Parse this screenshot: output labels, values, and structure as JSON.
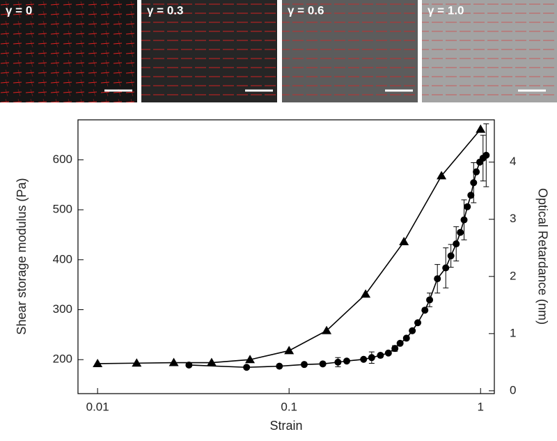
{
  "chart_data": {
    "type": "line",
    "panel_labels": [
      "γ = 0",
      "γ = 0.3",
      "γ = 0.6",
      "γ = 1.0"
    ],
    "x_label": "Strain",
    "y_label": "Shear storage modulus (Pa)",
    "y2_label": "Optical Retardance (nm)",
    "xscale": "log",
    "xlim": [
      0.0079,
      1.18
    ],
    "xticks": [
      0.01,
      0.1,
      1
    ],
    "ylim": [
      132,
      680
    ],
    "yticks": [
      200,
      300,
      400,
      500,
      600
    ],
    "y2lim": [
      -0.05,
      4.74
    ],
    "y2ticks": [
      0,
      1,
      2,
      3,
      4
    ],
    "series": [
      {
        "marker": "triangle",
        "color": "#000000",
        "x": [
          0.01,
          0.016,
          0.025,
          0.0394,
          0.0625,
          0.1,
          0.157,
          0.251,
          0.398,
          0.625,
          1.0
        ],
        "values": [
          192,
          193,
          194,
          194,
          200,
          218,
          258,
          331,
          436,
          568,
          661
        ]
      },
      {
        "marker": "circle",
        "color": "#000000",
        "axis": "y2",
        "x": [
          0.03,
          0.06,
          0.089,
          0.12,
          0.15,
          0.18,
          0.2,
          0.245,
          0.27,
          0.3,
          0.33,
          0.357,
          0.38,
          0.41,
          0.44,
          0.47,
          0.512,
          0.542,
          0.595,
          0.658,
          0.7,
          0.746,
          0.784,
          0.82,
          0.853,
          0.89,
          0.92,
          0.95,
          0.99,
          1.03,
          1.07
        ],
        "values": [
          0.45,
          0.41,
          0.43,
          0.46,
          0.47,
          0.5,
          0.52,
          0.55,
          0.58,
          0.62,
          0.66,
          0.74,
          0.83,
          0.92,
          1.05,
          1.19,
          1.41,
          1.59,
          1.96,
          2.15,
          2.36,
          2.57,
          2.77,
          2.99,
          3.22,
          3.42,
          3.64,
          3.83,
          4.0,
          4.07,
          4.12
        ],
        "errors": [
          null,
          null,
          null,
          null,
          null,
          0.08,
          null,
          null,
          0.1,
          null,
          null,
          0.05,
          null,
          null,
          null,
          null,
          null,
          0.12,
          0.25,
          0.35,
          0.2,
          0.3,
          null,
          0.35,
          null,
          null,
          0.35,
          null,
          null,
          0.4,
          0.55
        ]
      }
    ]
  }
}
